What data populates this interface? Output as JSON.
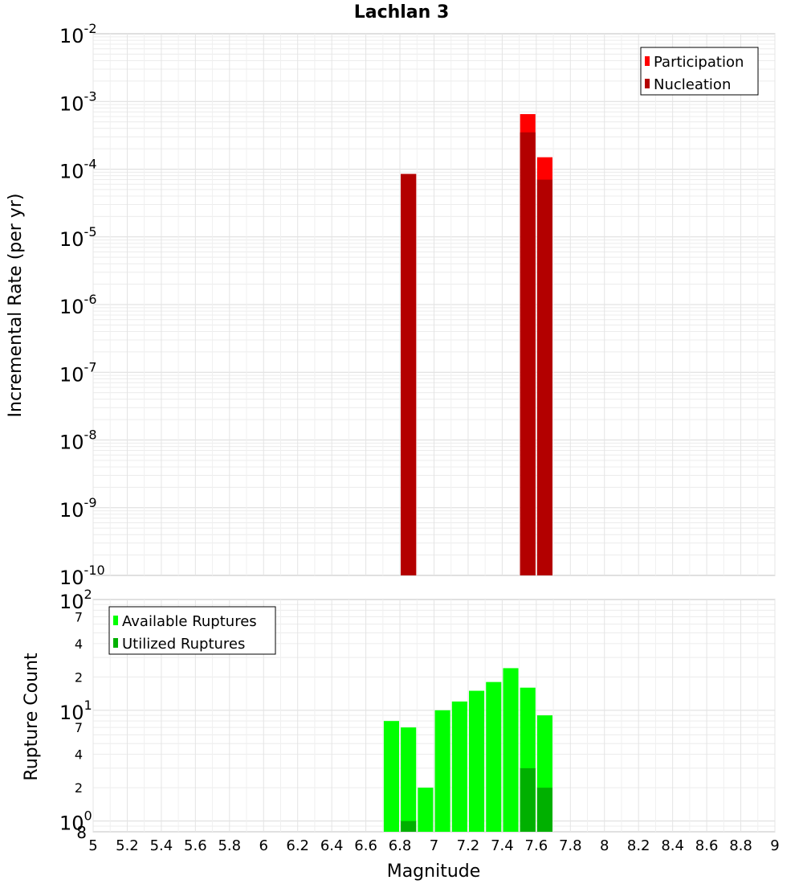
{
  "chart_data": [
    {
      "title": "Lachlan 3",
      "type": "bar",
      "ylabel": "Incremental Rate (per yr)",
      "xlabel": "",
      "xlim": [
        5,
        9
      ],
      "ylim": [
        1e-10,
        0.01
      ],
      "y_scale": "log",
      "y_ticks": [
        "10^-2",
        "10^-3",
        "10^-4",
        "10^-5",
        "10^-6",
        "10^-7",
        "10^-8",
        "10^-9",
        "10^-10"
      ],
      "grid": true,
      "legend_position": "top-right",
      "bar_width": 0.09,
      "series": [
        {
          "name": "Participation",
          "color": "#ff0000",
          "x": [
            6.85,
            7.55,
            7.65
          ],
          "values": [
            8.5e-05,
            0.00065,
            0.00015
          ]
        },
        {
          "name": "Nucleation",
          "color": "#b30000",
          "x": [
            6.85,
            7.55,
            7.65
          ],
          "values": [
            8.5e-05,
            0.00035,
            7e-05
          ]
        }
      ]
    },
    {
      "type": "bar",
      "ylabel": "Rupture Count",
      "xlabel": "Magnitude",
      "xlim": [
        5,
        9
      ],
      "ylim": [
        0.8,
        100
      ],
      "y_scale": "log",
      "y_major_ticks": [
        "10^0",
        "10^1",
        "10^2"
      ],
      "y_minor_ticks": [
        "2",
        "4",
        "7",
        "2",
        "4",
        "7"
      ],
      "y_bottom_tick": "8",
      "x_ticks": [
        "5",
        "5.2",
        "5.4",
        "5.6",
        "5.8",
        "6",
        "6.2",
        "6.4",
        "6.6",
        "6.8",
        "7",
        "7.2",
        "7.4",
        "7.6",
        "7.8",
        "8",
        "8.2",
        "8.4",
        "8.6",
        "8.8",
        "9"
      ],
      "grid": true,
      "legend_position": "top-left",
      "bar_width": 0.09,
      "series": [
        {
          "name": "Available Ruptures",
          "color": "#00ff00",
          "x": [
            6.75,
            6.85,
            6.95,
            7.05,
            7.15,
            7.25,
            7.35,
            7.45,
            7.55,
            7.65
          ],
          "values": [
            8,
            7,
            2,
            10,
            12,
            15,
            18,
            24,
            16,
            9
          ]
        },
        {
          "name": "Utilized Ruptures",
          "color": "#00b000",
          "x": [
            6.85,
            7.55,
            7.65
          ],
          "values": [
            1,
            3,
            2
          ]
        }
      ]
    }
  ]
}
